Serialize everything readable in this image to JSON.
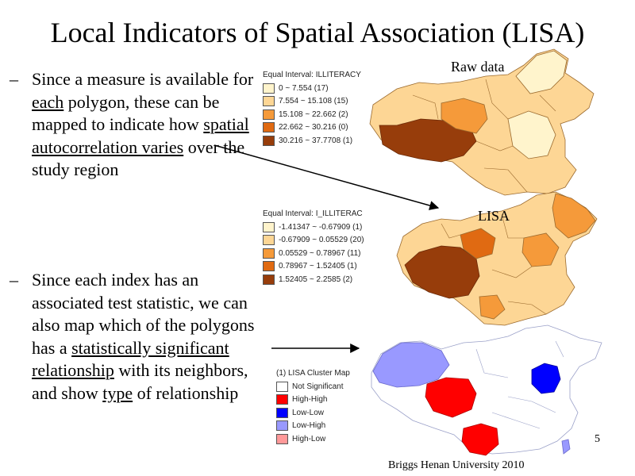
{
  "title": "Local Indicators of Spatial Association (LISA)",
  "bullets": [
    {
      "dash": "–",
      "segments": [
        {
          "text": "Since a measure is available for ",
          "u": false
        },
        {
          "text": "each",
          "u": true
        },
        {
          "text": " polygon, these can be mapped to indicate how ",
          "u": false
        },
        {
          "text": "spatial autocorrelation varies",
          "u": true
        },
        {
          "text": " over the study region",
          "u": false
        }
      ]
    },
    {
      "dash": "–",
      "segments": [
        {
          "text": "Since each index has an associated test statistic, we can also map which of the polygons has a ",
          "u": false
        },
        {
          "text": "statistically significant relationship",
          "u": true
        },
        {
          "text": " with its neighbors, and show ",
          "u": false
        },
        {
          "text": "type",
          "u": true
        },
        {
          "text": " of relationship",
          "u": false
        }
      ]
    }
  ],
  "map_labels": {
    "raw": "Raw data",
    "lisa": "LISA"
  },
  "legends": [
    {
      "title": "Equal Interval: ILLITERACY",
      "items": [
        {
          "label": "0 ~ 7.554 (17)",
          "color": "#fff4cc"
        },
        {
          "label": "7.554 ~ 15.108 (15)",
          "color": "#fdd695"
        },
        {
          "label": "15.108 ~ 22.662 (2)",
          "color": "#f59a3a"
        },
        {
          "label": "22.662 ~ 30.216 (0)",
          "color": "#e06a12"
        },
        {
          "label": "30.216 ~ 37.7708 (1)",
          "color": "#973d0b"
        }
      ]
    },
    {
      "title": "Equal Interval: I_ILLITERAC",
      "items": [
        {
          "label": "-1.41347 ~ -0.67909 (1)",
          "color": "#fff4cc"
        },
        {
          "label": "-0.67909 ~ 0.05529 (20)",
          "color": "#fdd695"
        },
        {
          "label": "0.05529 ~ 0.78967 (11)",
          "color": "#f59a3a"
        },
        {
          "label": "0.78967 ~ 1.52405 (1)",
          "color": "#e06a12"
        },
        {
          "label": "1.52405 ~ 2.2585 (2)",
          "color": "#973d0b"
        }
      ]
    },
    {
      "title": "(1) LISA Cluster Map",
      "items": [
        {
          "label": "Not Significant",
          "color": "#ffffff"
        },
        {
          "label": "High-High",
          "color": "#ff0000"
        },
        {
          "label": "Low-Low",
          "color": "#0000ff"
        },
        {
          "label": "Low-High",
          "color": "#9999ff"
        },
        {
          "label": "High-Low",
          "color": "#ff9999"
        }
      ]
    }
  ],
  "footer": "Briggs  Henan University 2010",
  "page_number": "5"
}
